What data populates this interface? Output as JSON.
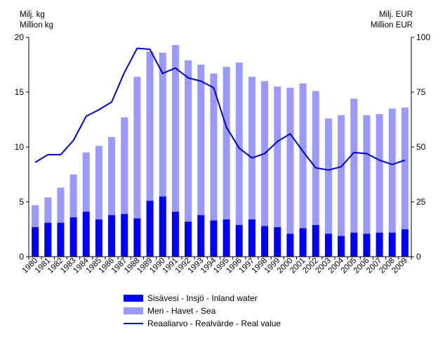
{
  "chart_data": {
    "type": "bar",
    "y_left_label": [
      "Milj. kg",
      "Million kg"
    ],
    "y_right_label": [
      "Milj. EUR",
      "Million EUR"
    ],
    "y_left_ticks": [
      "0",
      "5",
      "10",
      "15",
      "20"
    ],
    "y_right_ticks": [
      "0",
      "25",
      "50",
      "75",
      "100"
    ],
    "ylim_left": [
      0,
      20
    ],
    "ylim_right": [
      0,
      100
    ],
    "stacked": true,
    "grid": false,
    "legend_position": "bottom",
    "categories": [
      "1980",
      "1981",
      "1982",
      "1983",
      "1984",
      "1985",
      "1986",
      "1987",
      "1988",
      "1989",
      "1990",
      "1991",
      "1992",
      "1993",
      "1994",
      "1995",
      "1996",
      "1997",
      "1998",
      "1999",
      "2000",
      "2001",
      "2002",
      "2003",
      "2004",
      "2005",
      "2006",
      "2007",
      "2008",
      "2009"
    ],
    "series": [
      {
        "name": "Sisävesi - Insjö - Inland water",
        "color": "#0000ff",
        "axis": "left",
        "kind": "bar",
        "values": [
          2.7,
          3.1,
          3.1,
          3.6,
          4.1,
          3.4,
          3.8,
          3.9,
          3.5,
          5.1,
          5.5,
          4.1,
          3.2,
          3.8,
          3.3,
          3.4,
          2.9,
          3.4,
          2.8,
          2.7,
          2.1,
          2.6,
          2.9,
          2.1,
          1.9,
          2.2,
          2.1,
          2.2,
          2.2,
          2.5
        ]
      },
      {
        "name": "Meri - Havet - Sea",
        "color": "#9999ff",
        "axis": "left",
        "kind": "bar",
        "values": [
          2.0,
          2.3,
          3.2,
          3.9,
          5.4,
          6.7,
          7.1,
          8.8,
          12.9,
          13.6,
          13.1,
          15.2,
          14.7,
          13.7,
          13.4,
          13.9,
          14.8,
          13.0,
          13.2,
          12.8,
          13.3,
          13.2,
          12.2,
          10.5,
          11.0,
          12.2,
          10.8,
          10.8,
          11.3,
          11.1
        ]
      },
      {
        "name": "Reaaliarvo - Realvärde - Real value",
        "color": "#0000cc",
        "axis": "right",
        "kind": "line",
        "values": [
          43,
          46.5,
          46.5,
          53,
          64,
          67,
          70.5,
          84,
          95,
          94.5,
          83.5,
          86,
          81.5,
          80,
          77,
          59,
          49.5,
          45,
          47,
          52.5,
          56,
          48,
          40.5,
          39.5,
          41,
          47.5,
          47,
          44,
          42,
          44
        ]
      }
    ]
  }
}
